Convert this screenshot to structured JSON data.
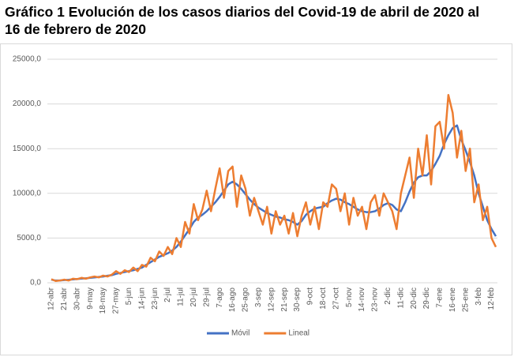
{
  "chart_data": {
    "type": "line",
    "title": "Gráfico 1 Evolución de los casos diarios del Covid-19 de abril de 2020 al 16 de febrero de 2020",
    "categories": [
      "12-abr",
      null,
      null,
      "21-abr",
      null,
      null,
      "30-abr",
      null,
      null,
      "9-may",
      null,
      null,
      "18-may",
      null,
      null,
      "27-may",
      null,
      null,
      "5-jun",
      null,
      null,
      "14-jun",
      null,
      null,
      "23-jun",
      null,
      null,
      "2-jul",
      null,
      null,
      "11-jul",
      null,
      null,
      "20-jul",
      null,
      null,
      "29-jul",
      null,
      null,
      "7-ago",
      null,
      null,
      "16-ago",
      null,
      null,
      "25-ago",
      null,
      null,
      "3-sep",
      null,
      null,
      "12-sep",
      null,
      null,
      "21-sep",
      null,
      null,
      "30-sep",
      null,
      null,
      "9-oct",
      null,
      null,
      "18-oct",
      null,
      null,
      "27-oct",
      null,
      null,
      "5-nov",
      null,
      null,
      "14-nov",
      null,
      null,
      "23-nov",
      null,
      null,
      "2-dic",
      null,
      null,
      "11-dic",
      null,
      null,
      "20-dic",
      null,
      null,
      "29-dic",
      null,
      null,
      "7-ene",
      null,
      null,
      "16-ene",
      null,
      null,
      "25-ene",
      null,
      null,
      "3-feb",
      null,
      null,
      "12-feb",
      null
    ],
    "series": [
      {
        "name": "Móvil",
        "color": "#4472c4",
        "values": [
          350,
          250,
          250,
          300,
          330,
          380,
          420,
          460,
          500,
          550,
          600,
          650,
          700,
          780,
          850,
          1000,
          1100,
          1200,
          1300,
          1400,
          1550,
          1700,
          2000,
          2300,
          2600,
          2900,
          3100,
          3300,
          3600,
          4000,
          4600,
          5300,
          6000,
          6800,
          7300,
          7600,
          8000,
          8500,
          9000,
          9600,
          10300,
          11000,
          11300,
          11000,
          10500,
          9900,
          9300,
          8800,
          8400,
          8100,
          7800,
          7600,
          7400,
          7300,
          7100,
          7000,
          6800,
          6500,
          6900,
          7600,
          8000,
          8300,
          8400,
          8500,
          8900,
          9200,
          9400,
          9300,
          9000,
          8800,
          8500,
          8200,
          8000,
          7900,
          7900,
          8000,
          8300,
          8700,
          8900,
          8700,
          8200,
          8000,
          9000,
          10200,
          11200,
          11800,
          12000,
          12000,
          12500,
          13300,
          14200,
          15500,
          16500,
          17300,
          17600,
          16000,
          14800,
          13500,
          12000,
          10000,
          8500,
          7000,
          6000,
          5200
        ]
      },
      {
        "name": "Lineal",
        "color": "#ed7d31",
        "values": [
          400,
          200,
          250,
          350,
          250,
          450,
          400,
          550,
          450,
          600,
          700,
          600,
          800,
          700,
          900,
          1300,
          1000,
          1400,
          1200,
          1700,
          1300,
          2000,
          1800,
          2800,
          2400,
          3500,
          3000,
          4000,
          3200,
          5000,
          4000,
          6800,
          5500,
          8800,
          7000,
          8200,
          10300,
          8000,
          10500,
          12800,
          9500,
          12500,
          13000,
          8500,
          12000,
          10500,
          7500,
          9500,
          8000,
          6500,
          8500,
          5500,
          8000,
          6500,
          7500,
          5500,
          7800,
          5200,
          7500,
          9000,
          6500,
          8500,
          6000,
          9000,
          8500,
          11000,
          10500,
          8000,
          10000,
          6500,
          9500,
          7500,
          8500,
          6000,
          9000,
          9800,
          7500,
          10000,
          9000,
          8000,
          6000,
          10000,
          12000,
          14000,
          9500,
          15000,
          12000,
          16500,
          11000,
          17500,
          18000,
          15000,
          21000,
          19000,
          14000,
          17000,
          12500,
          15000,
          9000,
          11000,
          7000,
          8500,
          5000,
          4000
        ]
      }
    ],
    "ylim": [
      0,
      25000
    ],
    "yticks": [
      {
        "value": 0,
        "label": "0,0"
      },
      {
        "value": 5000,
        "label": "5000,0"
      },
      {
        "value": 10000,
        "label": "10000,0"
      },
      {
        "value": 15000,
        "label": "15000,0"
      },
      {
        "value": 20000,
        "label": "20000,0"
      },
      {
        "value": 25000,
        "label": "25000,0"
      }
    ],
    "grid": true,
    "legend": "bottom"
  }
}
